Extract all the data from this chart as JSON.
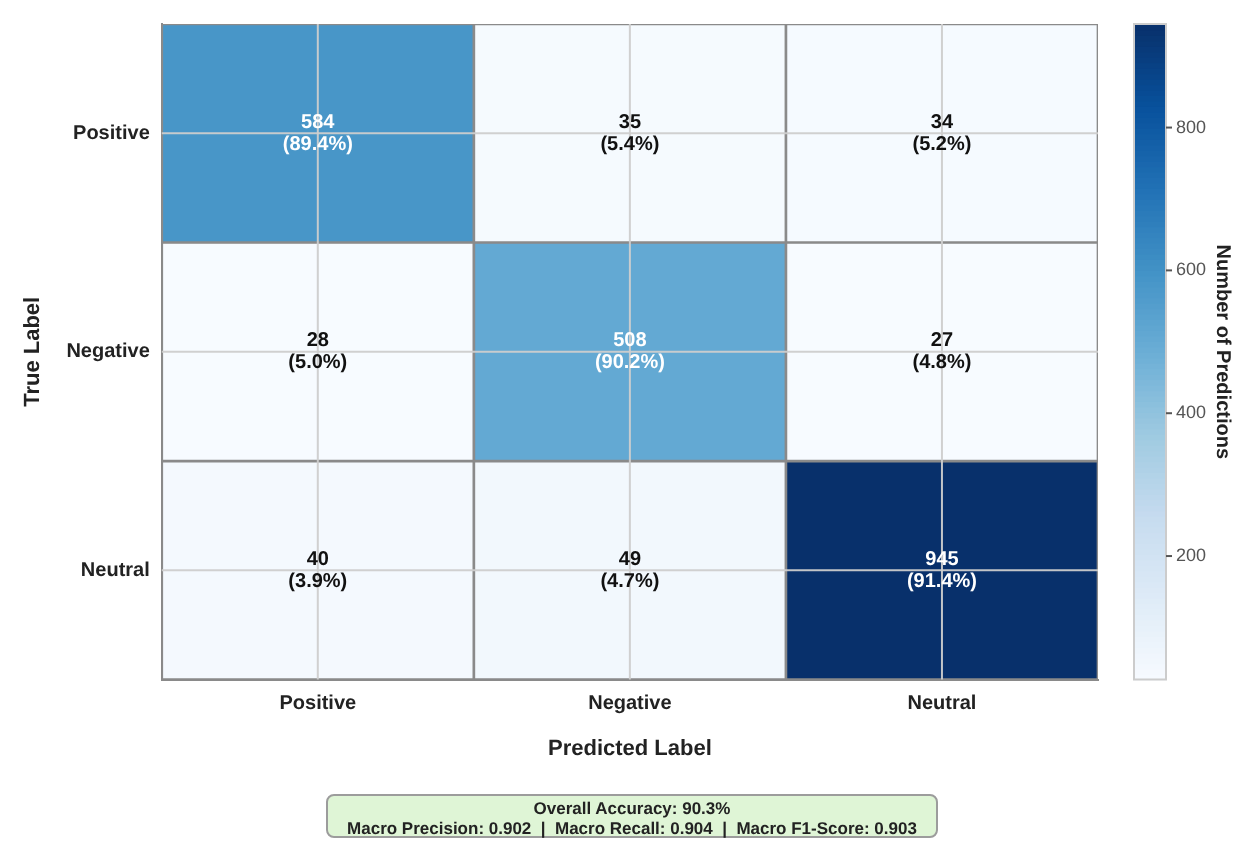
{
  "chart_data": {
    "type": "heatmap",
    "xlabel": "Predicted Label",
    "ylabel": "True Label",
    "clabel": "Number of Predictions",
    "categories": [
      "Positive",
      "Negative",
      "Neutral"
    ],
    "y_categories": [
      "Positive",
      "Negative",
      "Neutral"
    ],
    "cells": [
      [
        584,
        35,
        34
      ],
      [
        28,
        508,
        27
      ],
      [
        40,
        49,
        945
      ]
    ],
    "cell_labels": [
      [
        "584\n(89.4%)",
        "35\n(5.4%)",
        "34\n(5.2%)"
      ],
      [
        "28\n(5.0%)",
        "508\n(90.2%)",
        "27\n(4.8%)"
      ],
      [
        "40\n(3.9%)",
        "49\n(4.7%)",
        "945\n(91.4%)"
      ]
    ],
    "clim": [
      27,
      945
    ],
    "cticks": [
      200,
      400,
      600,
      800
    ],
    "grid": true,
    "annotations": [
      "Overall Accuracy: 90.3%",
      "Macro Precision: 0.902  |  Macro Recall: 0.904  |  Macro F1-Score: 0.903"
    ]
  }
}
